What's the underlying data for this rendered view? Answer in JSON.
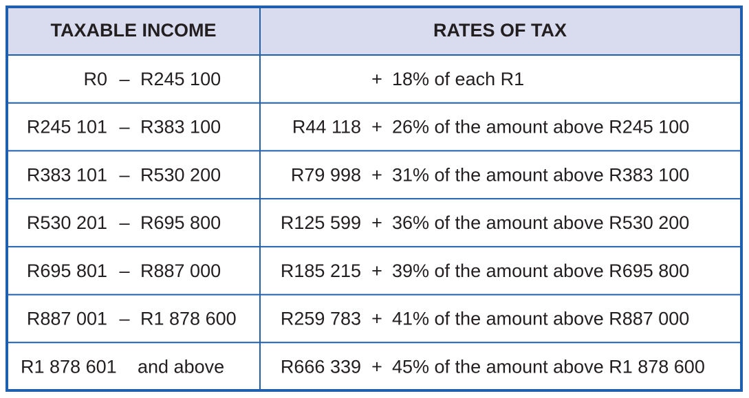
{
  "table": {
    "header": [
      "TAXABLE INCOME",
      "RATES OF TAX"
    ],
    "rows": [
      {
        "income": [
          "R0",
          "–",
          "R245 100"
        ],
        "rate": [
          "+",
          "18% of each R1"
        ]
      },
      {
        "income": [
          "R245 101",
          "–",
          "R383 100"
        ],
        "rate": [
          "R44 118",
          "+",
          "26% of the amount above R245 100"
        ]
      },
      {
        "income": [
          "R383 101",
          "–",
          "R530 200"
        ],
        "rate": [
          "R79 998",
          "+",
          "31% of the amount above R383 100"
        ]
      },
      {
        "income": [
          "R530 201",
          "–",
          "R695 800"
        ],
        "rate": [
          "R125 599",
          "+",
          "36% of the amount above R530 200"
        ]
      },
      {
        "income": [
          "R695 801",
          "–",
          "R887 000"
        ],
        "rate": [
          "R185 215",
          "+",
          "39% of the amount above R695 800"
        ]
      },
      {
        "income": [
          "R887 001",
          "–",
          "R1 878 600"
        ],
        "rate": [
          "R259 783",
          "+",
          "41% of the amount above R887 000"
        ]
      },
      {
        "income": [
          "R1 878 601",
          "and above"
        ],
        "rate": [
          "R666 339",
          "+",
          "45% of the amount above R1 878 600"
        ]
      }
    ]
  }
}
